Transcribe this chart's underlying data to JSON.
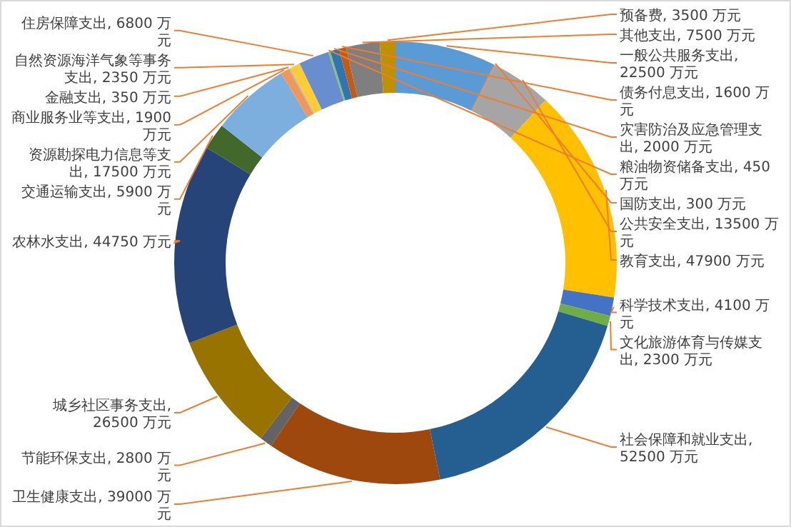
{
  "chart_data": {
    "type": "donut",
    "categories": [
      "一般公共服务支出",
      "国防支出",
      "公共安全支出",
      "教育支出",
      "科学技术支出",
      "文化旅游体育与传媒支出",
      "社会保障和就业支出",
      "卫生健康支出",
      "节能环保支出",
      "城乡社区事务支出",
      "农林水支出",
      "交通运输支出",
      "资源勘探电力信息等支出",
      "商业服务业等支出",
      "金融支出",
      "自然资源海洋气象等事务支出",
      "住房保障支出",
      "粮油物资储备支出",
      "灾害防治及应急管理支出",
      "债务付息支出",
      "其他支出",
      "预备费"
    ],
    "values": [
      22500,
      300,
      13500,
      47900,
      4100,
      2300,
      52500,
      39000,
      2800,
      26500,
      44750,
      5900,
      17500,
      1900,
      350,
      2350,
      6800,
      450,
      2000,
      1600,
      7500,
      3500
    ],
    "value_labels": [
      ", 22500 万元",
      ", 300 万元",
      ", 13500 万元",
      ", 47900 万元",
      ", 4100 万元",
      ", 2300 万元",
      ", 52500 万元",
      ", 39000 万元",
      ", 2800 万元",
      ", 26500 万元",
      ", 44750 万元",
      ", 5900 万元",
      ", 17500 万元",
      ", 1900 万元",
      ", 350 万元",
      ", 2350 万元",
      ", 6800 万元",
      ", 450 万元",
      ", 2000 万元",
      ", 1600 万元",
      ", 7500 万元",
      ", 3500 万元"
    ],
    "colors": [
      "#5b9bd5",
      "#ed7d31",
      "#a5a5a5",
      "#ffc000",
      "#4472c4",
      "#70ad47",
      "#255e91",
      "#9e480e",
      "#636363",
      "#997300",
      "#264478",
      "#43682b",
      "#7cafdd",
      "#f1975a",
      "#b7b7b7",
      "#ffcd33",
      "#698ed0",
      "#8cc168",
      "#2e75b6",
      "#c55a11",
      "#7f7f7f",
      "#bf9000"
    ]
  }
}
